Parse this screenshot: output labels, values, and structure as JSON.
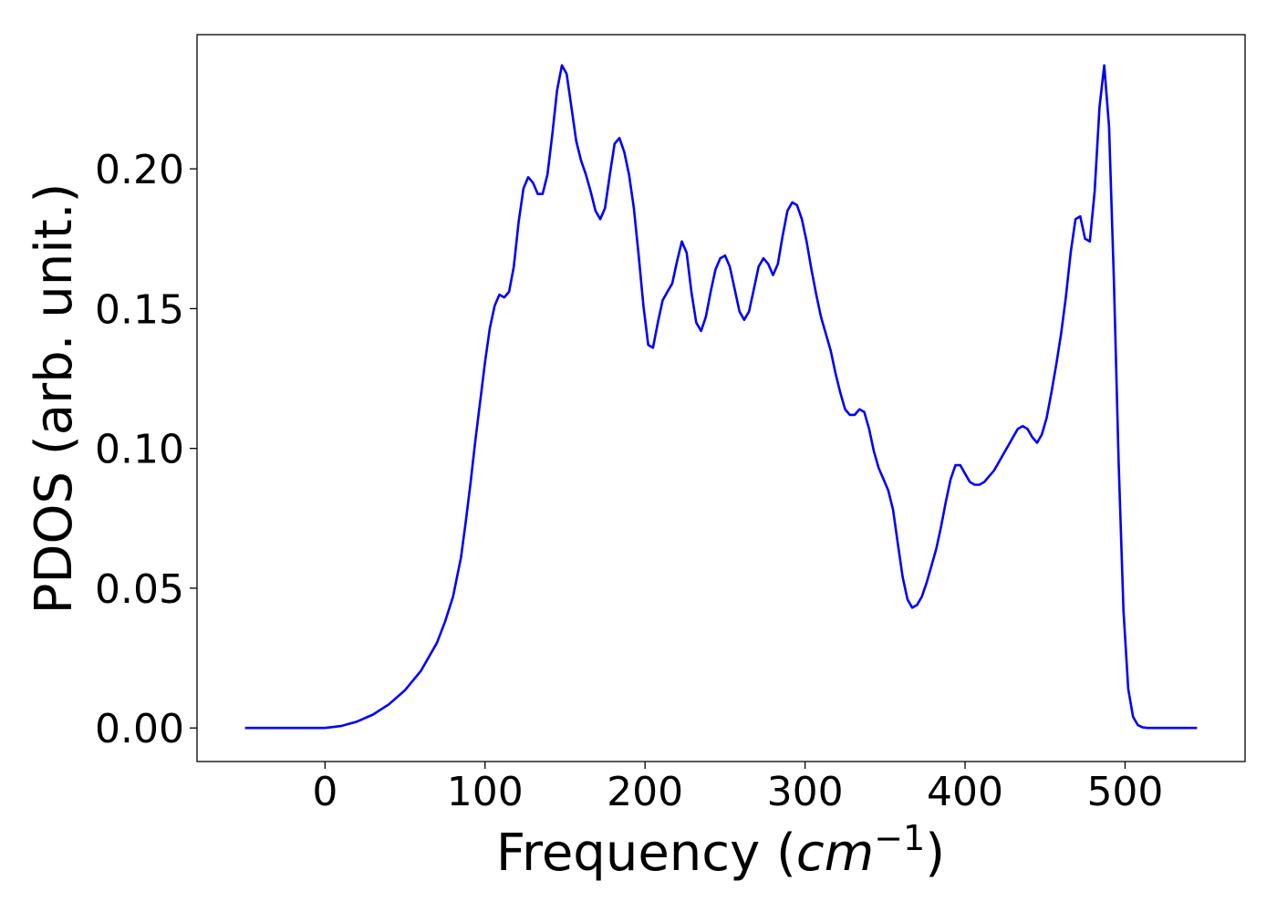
{
  "chart_data": {
    "type": "line",
    "title": "",
    "xlabel_main": "Frequency (",
    "xlabel_unit": "cm",
    "xlabel_exp": "−1",
    "xlabel_close": ")",
    "ylabel": "PDOS (arb. unit.)",
    "xlim": [
      -80,
      575
    ],
    "ylim": [
      -0.012,
      0.248
    ],
    "xticks": [
      0,
      100,
      200,
      300,
      400,
      500
    ],
    "xtick_labels": [
      "0",
      "100",
      "200",
      "300",
      "400",
      "500"
    ],
    "yticks": [
      0.0,
      0.05,
      0.1,
      0.15,
      0.2
    ],
    "ytick_labels": [
      "0.00",
      "0.05",
      "0.10",
      "0.15",
      "0.20"
    ],
    "grid": false,
    "legend": "none",
    "series": [
      {
        "color": "#0000ff",
        "x": [
          -50,
          -20,
          0,
          10,
          20,
          30,
          40,
          50,
          60,
          70,
          75,
          80,
          85,
          88,
          91,
          94,
          97,
          100,
          103,
          106,
          109,
          112,
          115,
          118,
          121,
          124,
          127,
          130,
          133,
          136,
          139,
          142,
          145,
          148,
          151,
          154,
          157,
          160,
          163,
          166,
          169,
          172,
          175,
          178,
          181,
          184,
          187,
          190,
          193,
          196,
          199,
          202,
          205,
          208,
          211,
          214,
          217,
          220,
          223,
          226,
          229,
          232,
          235,
          238,
          241,
          244,
          247,
          250,
          253,
          256,
          259,
          262,
          265,
          268,
          271,
          274,
          277,
          280,
          283,
          286,
          289,
          292,
          295,
          298,
          301,
          304,
          307,
          310,
          313,
          316,
          319,
          322,
          325,
          328,
          331,
          334,
          337,
          340,
          343,
          346,
          349,
          352,
          355,
          358,
          361,
          364,
          367,
          370,
          373,
          376,
          379,
          382,
          385,
          388,
          391,
          394,
          397,
          400,
          403,
          406,
          409,
          412,
          415,
          418,
          421,
          424,
          427,
          430,
          433,
          436,
          439,
          442,
          445,
          448,
          451,
          454,
          457,
          460,
          463,
          466,
          469,
          472,
          475,
          478,
          481,
          484,
          487,
          490,
          493,
          496,
          499,
          502,
          505,
          508,
          511,
          514,
          520,
          530,
          545
        ],
        "y": [
          0.0,
          0.0,
          0.0,
          0.0007,
          0.0023,
          0.0048,
          0.0085,
          0.0135,
          0.0205,
          0.0305,
          0.038,
          0.047,
          0.061,
          0.074,
          0.088,
          0.103,
          0.117,
          0.131,
          0.143,
          0.151,
          0.155,
          0.154,
          0.156,
          0.165,
          0.181,
          0.193,
          0.197,
          0.195,
          0.191,
          0.191,
          0.198,
          0.212,
          0.228,
          0.237,
          0.234,
          0.222,
          0.21,
          0.203,
          0.198,
          0.192,
          0.185,
          0.182,
          0.186,
          0.198,
          0.209,
          0.211,
          0.206,
          0.198,
          0.186,
          0.169,
          0.151,
          0.137,
          0.136,
          0.145,
          0.153,
          0.156,
          0.159,
          0.167,
          0.174,
          0.17,
          0.156,
          0.145,
          0.142,
          0.147,
          0.156,
          0.164,
          0.168,
          0.169,
          0.165,
          0.157,
          0.149,
          0.146,
          0.149,
          0.157,
          0.165,
          0.168,
          0.166,
          0.162,
          0.166,
          0.176,
          0.185,
          0.188,
          0.187,
          0.182,
          0.174,
          0.164,
          0.155,
          0.147,
          0.141,
          0.135,
          0.127,
          0.12,
          0.114,
          0.112,
          0.112,
          0.114,
          0.113,
          0.107,
          0.099,
          0.093,
          0.089,
          0.085,
          0.078,
          0.066,
          0.054,
          0.046,
          0.043,
          0.044,
          0.047,
          0.052,
          0.058,
          0.064,
          0.072,
          0.081,
          0.089,
          0.094,
          0.094,
          0.091,
          0.088,
          0.087,
          0.087,
          0.088,
          0.09,
          0.092,
          0.095,
          0.098,
          0.101,
          0.104,
          0.107,
          0.108,
          0.107,
          0.104,
          0.102,
          0.105,
          0.111,
          0.12,
          0.13,
          0.141,
          0.154,
          0.17,
          0.182,
          0.183,
          0.175,
          0.174,
          0.192,
          0.222,
          0.237,
          0.215,
          0.16,
          0.095,
          0.042,
          0.014,
          0.004,
          0.001,
          0.0002,
          0.0,
          0.0,
          0.0,
          0.0
        ]
      }
    ]
  }
}
